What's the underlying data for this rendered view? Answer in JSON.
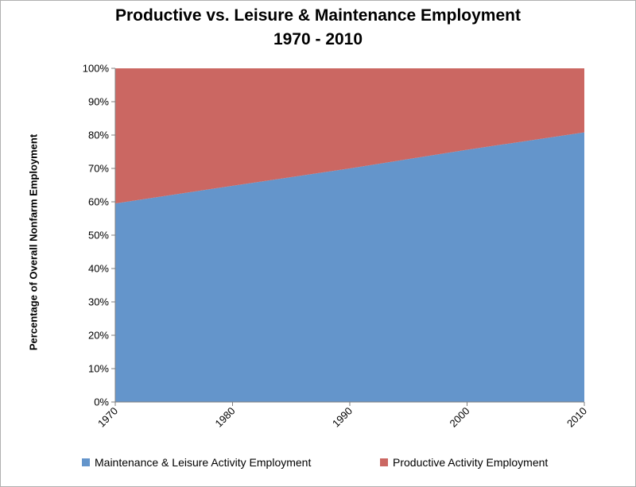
{
  "chart_data": {
    "type": "area",
    "stacked": true,
    "title": "Productive vs. Leisure & Maintenance Employment",
    "subtitle": "1970 - 2010",
    "ylabel": "Percentage of Overall Nonfarm Employment",
    "xlabel": "",
    "x": [
      1970,
      1980,
      1990,
      2000,
      2010
    ],
    "x_tick_labels": [
      "1970",
      "1980",
      "1990",
      "2000",
      "2010"
    ],
    "ylim": [
      0,
      100
    ],
    "y_tick_labels": [
      "0%",
      "10%",
      "20%",
      "30%",
      "40%",
      "50%",
      "60%",
      "70%",
      "80%",
      "90%",
      "100%"
    ],
    "grid": false,
    "legend_position": "bottom",
    "series": [
      {
        "name": "Maintenance & Leisure Activity Employment",
        "color": "#6495CB",
        "values": [
          59.5,
          64.8,
          70.0,
          75.6,
          80.8
        ]
      },
      {
        "name": "Productive Activity Employment",
        "color": "#CB6762",
        "values": [
          40.5,
          35.2,
          30.0,
          24.4,
          19.2
        ]
      }
    ]
  }
}
